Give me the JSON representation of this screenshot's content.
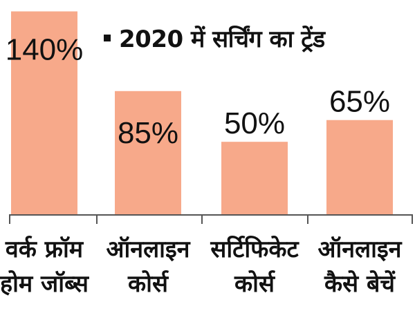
{
  "chart_data": {
    "type": "bar",
    "title": "2020 में सर्चिंग का ट्रेंड",
    "categories": [
      [
        "वर्क फ्रॉम",
        "होम जॉब्स"
      ],
      [
        "ऑनलाइन",
        "कोर्स"
      ],
      [
        "सर्टिफिकेट",
        "कोर्स"
      ],
      [
        "ऑनलाइन",
        "कैसे बेचें"
      ]
    ],
    "values": [
      140,
      85,
      50,
      65
    ],
    "value_labels": [
      "140%",
      "85%",
      "50%",
      "65%"
    ],
    "ylim": [
      0,
      145
    ],
    "grid": false,
    "legend": "none"
  },
  "colors": {
    "bar": "#f7a98a",
    "axis": "#555555",
    "text": "#111111"
  }
}
